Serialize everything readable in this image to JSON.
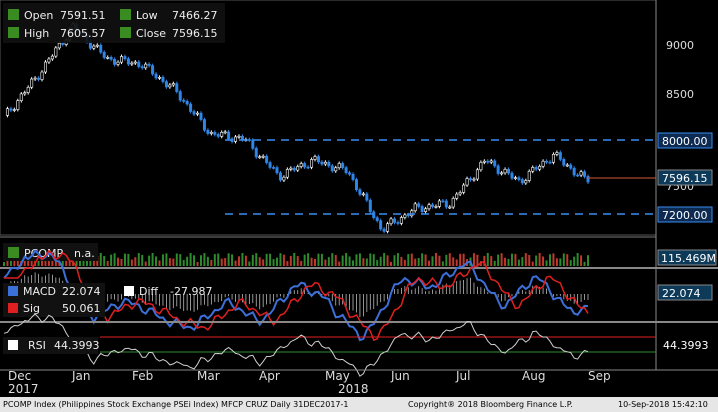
{
  "price_legend": {
    "open_label": "Open",
    "open_value": "7591.51",
    "high_label": "High",
    "high_value": "7605.57",
    "low_label": "Low",
    "low_value": "7466.27",
    "close_label": "Close",
    "close_value": "7596.15"
  },
  "price_axis": {
    "ticks": [
      "9000",
      "8500",
      "8000.00",
      "7596.15",
      "7500",
      "7200.00"
    ]
  },
  "reference_lines": [
    "8000.00",
    "7200.00"
  ],
  "volume_panel": {
    "label": "PCOMP",
    "value_text": "n.a.",
    "axis_badge": "115.469M"
  },
  "macd_panel": {
    "macd_label": "MACD",
    "macd_value": "22.074",
    "diff_label": "Diff",
    "diff_value": "-27.987",
    "sig_label": "Sig",
    "sig_value": "50.061",
    "axis_badge": "22.074"
  },
  "rsi_panel": {
    "label": "RSI",
    "value": "44.3993",
    "axis_badge": "44.3993"
  },
  "time_axis": {
    "labels": [
      "Dec",
      "Jan",
      "Feb",
      "Mar",
      "Apr",
      "May",
      "Jun",
      "Jul",
      "Aug",
      "Sep"
    ],
    "year_labels": [
      "2017",
      "2018"
    ]
  },
  "footer": {
    "left": "PCOMP Index (Philippines Stock Exchange PSEi Index) MFCP CRUZ  Daily 31DEC2017-1",
    "center": "Copyright® 2018 Bloomberg Finance L.P.",
    "right": "10-Sep-2018 15:42:10"
  },
  "colors": {
    "up": "#ffffff",
    "down": "#2f86e8",
    "ref_line": "#3a8df0",
    "volume_bar": "#c0392b",
    "volume_bar_alt": "#2e8b2e",
    "rsi_line": "#cfcfcf",
    "sig_line": "#e02020",
    "legend_green": "#3a8c22"
  },
  "chart_data": {
    "type": "line",
    "title": "",
    "xlabel": "",
    "ylabel": "",
    "ylim": [
      7100,
      9300
    ],
    "x": [
      "Dec",
      "Jan",
      "Jan",
      "Feb",
      "Feb",
      "Mar",
      "Mar",
      "Apr",
      "Apr",
      "May",
      "May",
      "Jun",
      "Jun",
      "Jul",
      "Jul",
      "Aug",
      "Aug",
      "Sep"
    ],
    "series": [
      {
        "values": [
          8200,
          8600,
          9050,
          8750,
          8700,
          8450,
          8050,
          8000,
          7650,
          7800,
          7700,
          7150,
          7350,
          7400,
          7800,
          7600,
          7850,
          7596
        ]
      }
    ]
  }
}
